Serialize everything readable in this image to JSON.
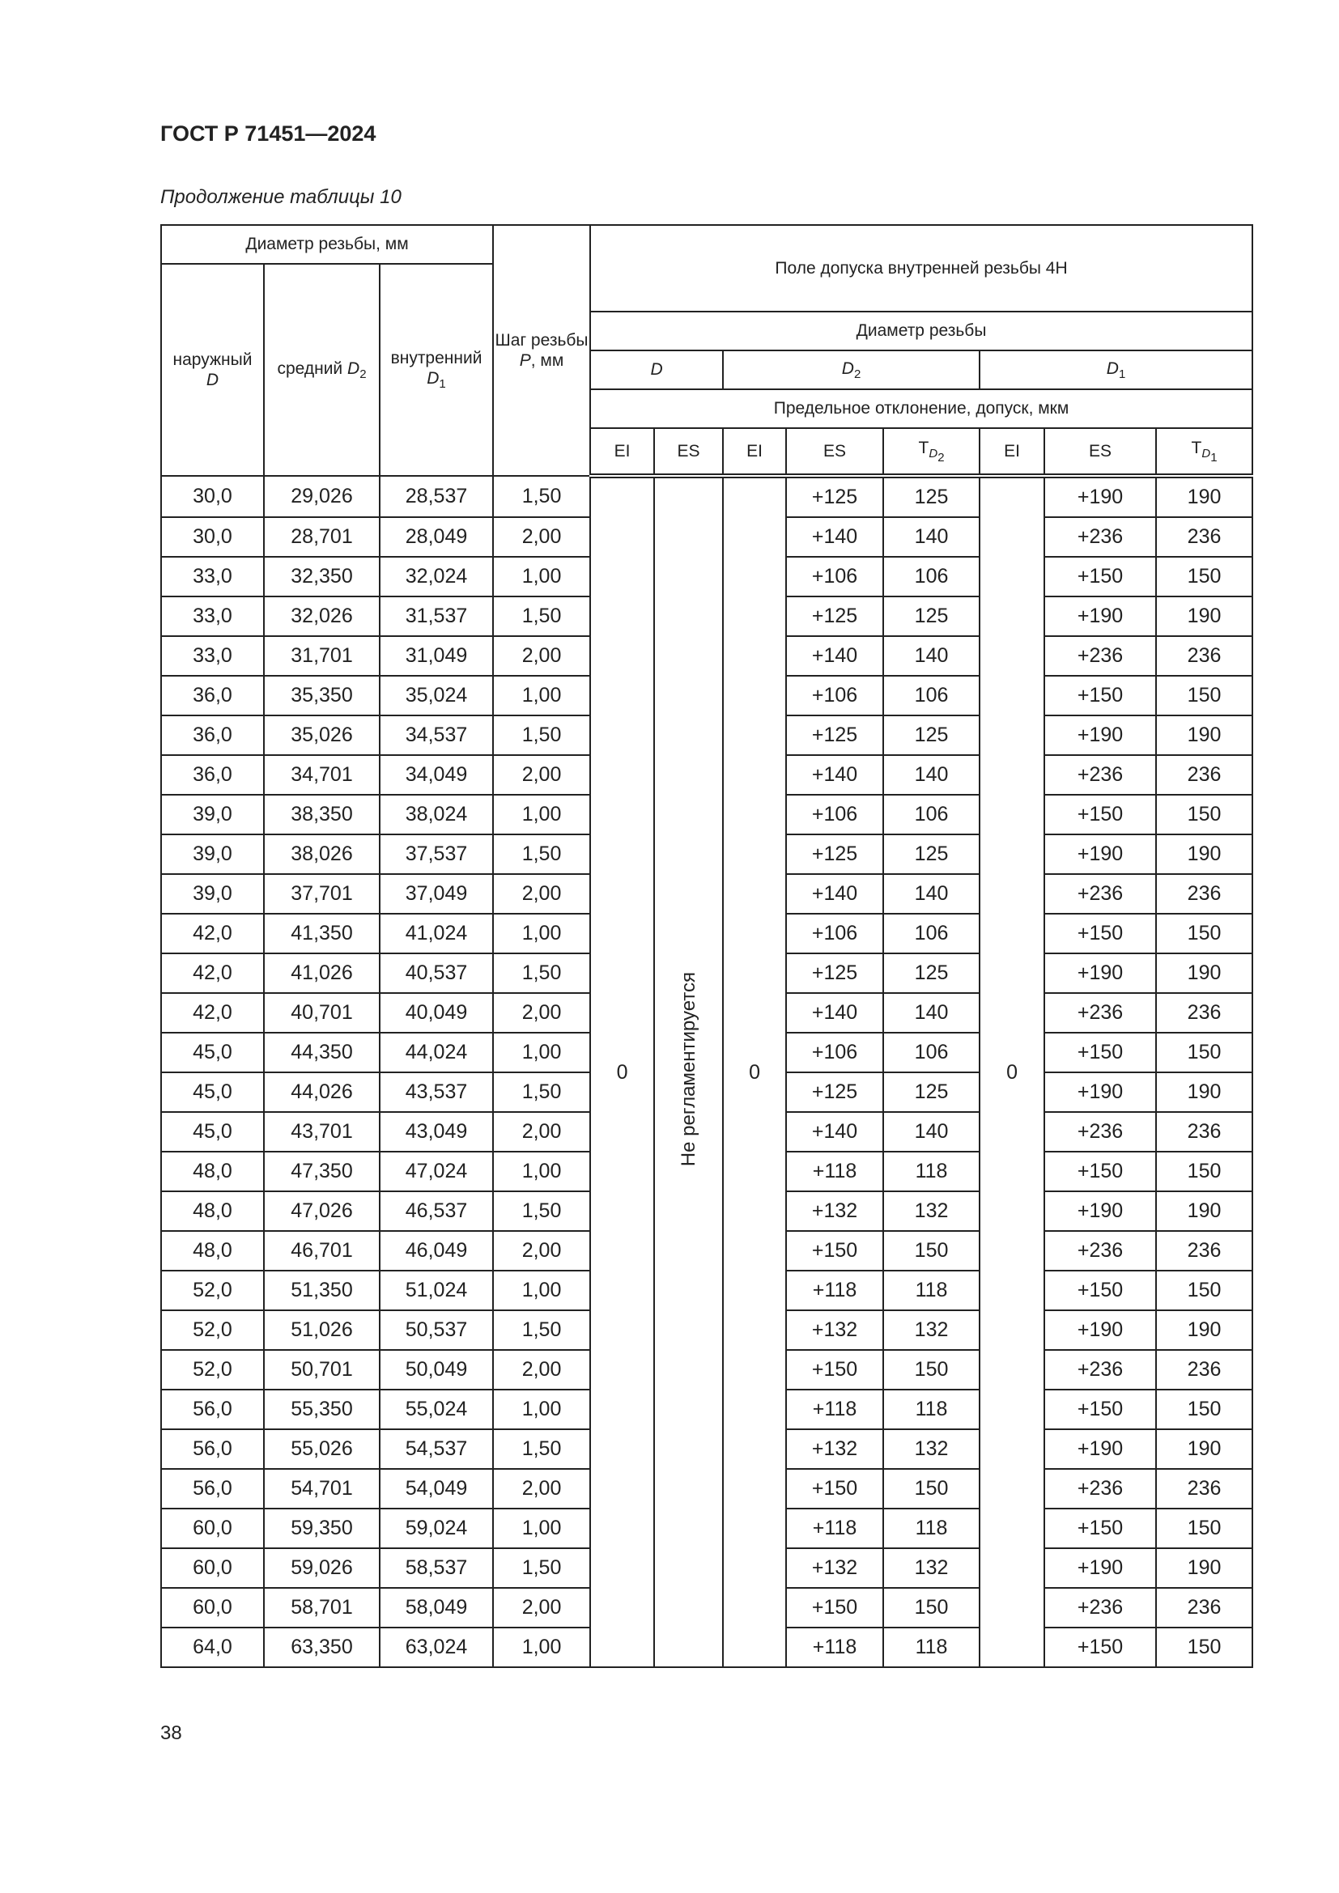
{
  "header": {
    "title": "ГОСТ Р 71451—2024",
    "subtitle": "Продолжение таблицы 10"
  },
  "table": {
    "h_diameter": "Диаметр резьбы, мм",
    "h_outer": "наружный",
    "h_outer_sym": "D",
    "h_mid": "средний",
    "h_mid_sym": "D",
    "h_mid_sub": "2",
    "h_inner": "внутренний",
    "h_inner_sym": "D",
    "h_inner_sub": "1",
    "h_pitch": "Шаг резьбы",
    "h_pitch_sym": "P",
    "h_pitch_unit": ", мм",
    "h_field": "Поле допуска внутренней резьбы 4H",
    "h_thread_diam": "Диаметр резьбы",
    "h_D": "D",
    "h_D2": "D",
    "h_D2_sub": "2",
    "h_D1": "D",
    "h_D1_sub": "1",
    "h_limits": "Предельное отклонение, допуск, мкм",
    "h_EI": "EI",
    "h_ES": "ES",
    "h_T": "T",
    "h_TD2_sub": "D",
    "h_TD2_sub2": "2",
    "h_TD1_sub": "D",
    "h_TD1_sub2": "1",
    "EI_D": "0",
    "ES_D": "Не регламентируется",
    "EI_D2": "0",
    "EI_D1": "0",
    "rows": [
      [
        "30,0",
        "29,026",
        "28,537",
        "1,50",
        "+125",
        "125",
        "+190",
        "190"
      ],
      [
        "30,0",
        "28,701",
        "28,049",
        "2,00",
        "+140",
        "140",
        "+236",
        "236"
      ],
      [
        "33,0",
        "32,350",
        "32,024",
        "1,00",
        "+106",
        "106",
        "+150",
        "150"
      ],
      [
        "33,0",
        "32,026",
        "31,537",
        "1,50",
        "+125",
        "125",
        "+190",
        "190"
      ],
      [
        "33,0",
        "31,701",
        "31,049",
        "2,00",
        "+140",
        "140",
        "+236",
        "236"
      ],
      [
        "36,0",
        "35,350",
        "35,024",
        "1,00",
        "+106",
        "106",
        "+150",
        "150"
      ],
      [
        "36,0",
        "35,026",
        "34,537",
        "1,50",
        "+125",
        "125",
        "+190",
        "190"
      ],
      [
        "36,0",
        "34,701",
        "34,049",
        "2,00",
        "+140",
        "140",
        "+236",
        "236"
      ],
      [
        "39,0",
        "38,350",
        "38,024",
        "1,00",
        "+106",
        "106",
        "+150",
        "150"
      ],
      [
        "39,0",
        "38,026",
        "37,537",
        "1,50",
        "+125",
        "125",
        "+190",
        "190"
      ],
      [
        "39,0",
        "37,701",
        "37,049",
        "2,00",
        "+140",
        "140",
        "+236",
        "236"
      ],
      [
        "42,0",
        "41,350",
        "41,024",
        "1,00",
        "+106",
        "106",
        "+150",
        "150"
      ],
      [
        "42,0",
        "41,026",
        "40,537",
        "1,50",
        "+125",
        "125",
        "+190",
        "190"
      ],
      [
        "42,0",
        "40,701",
        "40,049",
        "2,00",
        "+140",
        "140",
        "+236",
        "236"
      ],
      [
        "45,0",
        "44,350",
        "44,024",
        "1,00",
        "+106",
        "106",
        "+150",
        "150"
      ],
      [
        "45,0",
        "44,026",
        "43,537",
        "1,50",
        "+125",
        "125",
        "+190",
        "190"
      ],
      [
        "45,0",
        "43,701",
        "43,049",
        "2,00",
        "+140",
        "140",
        "+236",
        "236"
      ],
      [
        "48,0",
        "47,350",
        "47,024",
        "1,00",
        "+118",
        "118",
        "+150",
        "150"
      ],
      [
        "48,0",
        "47,026",
        "46,537",
        "1,50",
        "+132",
        "132",
        "+190",
        "190"
      ],
      [
        "48,0",
        "46,701",
        "46,049",
        "2,00",
        "+150",
        "150",
        "+236",
        "236"
      ],
      [
        "52,0",
        "51,350",
        "51,024",
        "1,00",
        "+118",
        "118",
        "+150",
        "150"
      ],
      [
        "52,0",
        "51,026",
        "50,537",
        "1,50",
        "+132",
        "132",
        "+190",
        "190"
      ],
      [
        "52,0",
        "50,701",
        "50,049",
        "2,00",
        "+150",
        "150",
        "+236",
        "236"
      ],
      [
        "56,0",
        "55,350",
        "55,024",
        "1,00",
        "+118",
        "118",
        "+150",
        "150"
      ],
      [
        "56,0",
        "55,026",
        "54,537",
        "1,50",
        "+132",
        "132",
        "+190",
        "190"
      ],
      [
        "56,0",
        "54,701",
        "54,049",
        "2,00",
        "+150",
        "150",
        "+236",
        "236"
      ],
      [
        "60,0",
        "59,350",
        "59,024",
        "1,00",
        "+118",
        "118",
        "+150",
        "150"
      ],
      [
        "60,0",
        "59,026",
        "58,537",
        "1,50",
        "+132",
        "132",
        "+190",
        "190"
      ],
      [
        "60,0",
        "58,701",
        "58,049",
        "2,00",
        "+150",
        "150",
        "+236",
        "236"
      ],
      [
        "64,0",
        "63,350",
        "63,024",
        "1,00",
        "+118",
        "118",
        "+150",
        "150"
      ]
    ]
  },
  "footer": {
    "page_number": "38"
  }
}
